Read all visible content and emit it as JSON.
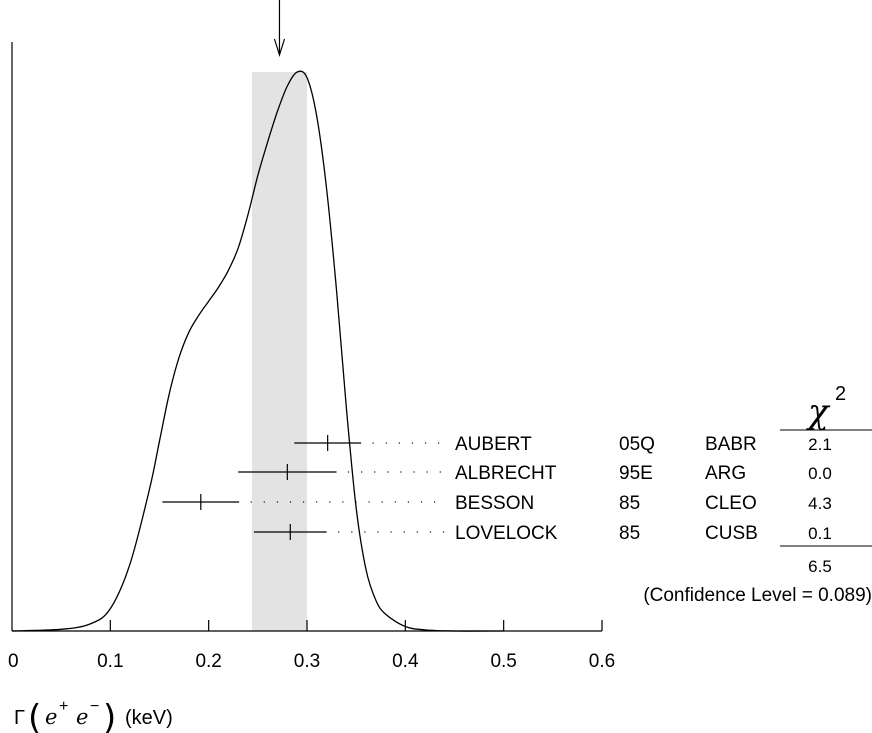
{
  "chart_data": {
    "type": "ideogram",
    "xlim": [
      0,
      0.6
    ],
    "x_ticks": [
      "0",
      "0.1",
      "0.2",
      "0.3",
      "0.4",
      "0.5",
      "0.6"
    ],
    "x_tick_values": [
      0,
      0.1,
      0.2,
      0.3,
      0.4,
      0.5,
      0.6
    ],
    "xlabel": {
      "symbol": "Γ",
      "particle_1": "e",
      "charge_1": "+",
      "particle_2": "e",
      "charge_2": "−",
      "unit": "(keV)"
    },
    "average": 0.272,
    "band": [
      0.244,
      0.3
    ],
    "curve": {
      "x": [
        0.0,
        0.05,
        0.08,
        0.1,
        0.12,
        0.14,
        0.15,
        0.16,
        0.17,
        0.18,
        0.19,
        0.2,
        0.21,
        0.22,
        0.23,
        0.24,
        0.25,
        0.26,
        0.27,
        0.28,
        0.29,
        0.3,
        0.31,
        0.32,
        0.33,
        0.34,
        0.35,
        0.36,
        0.37,
        0.38,
        0.4,
        0.42,
        0.45,
        0.5
      ],
      "y": [
        0.0,
        0.003,
        0.013,
        0.04,
        0.12,
        0.255,
        0.34,
        0.425,
        0.49,
        0.535,
        0.565,
        0.59,
        0.615,
        0.645,
        0.685,
        0.745,
        0.815,
        0.875,
        0.93,
        0.975,
        1.0,
        0.99,
        0.92,
        0.79,
        0.61,
        0.4,
        0.22,
        0.11,
        0.055,
        0.03,
        0.008,
        0.002,
        0.0,
        0.0
      ]
    },
    "measurements": [
      {
        "author": "AUBERT",
        "ref": "05Q",
        "experiment": "BABR",
        "value": 0.321,
        "lo": 0.287,
        "hi": 0.355,
        "chi2": "2.1"
      },
      {
        "author": "ALBRECHT",
        "ref": "95E",
        "experiment": "ARG",
        "value": 0.28,
        "lo": 0.23,
        "hi": 0.33,
        "chi2": "0.0"
      },
      {
        "author": "BESSON",
        "ref": "85",
        "experiment": "CLEO",
        "value": 0.192,
        "lo": 0.153,
        "hi": 0.231,
        "chi2": "4.3"
      },
      {
        "author": "LOVELOCK",
        "ref": "85",
        "experiment": "CUSB",
        "value": 0.283,
        "lo": 0.246,
        "hi": 0.32,
        "chi2": "0.1"
      }
    ],
    "chi2_header": "χ",
    "chi2_header_sup": "2",
    "chi2_total": "6.5",
    "confidence_level": "(Confidence Level = 0.089)"
  },
  "colors": {
    "band": "#e3e3e3",
    "ink": "#000000"
  }
}
